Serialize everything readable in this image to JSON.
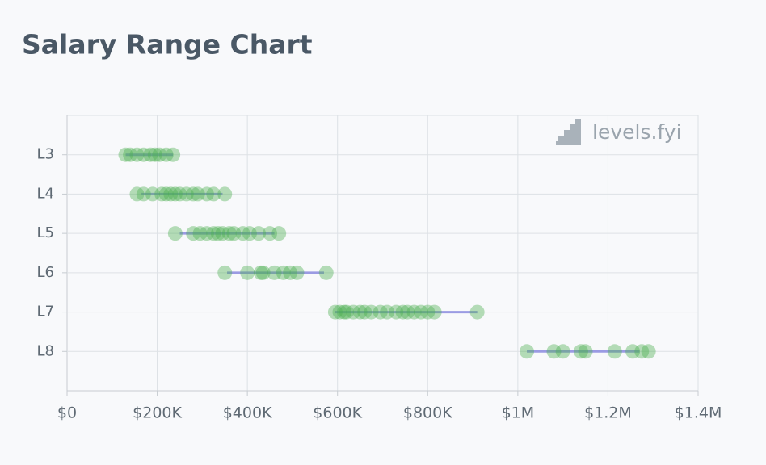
{
  "chart_data": {
    "type": "scatter",
    "title": "Salary Range Chart",
    "watermark": "levels.fyi",
    "categories": [
      "L3",
      "L4",
      "L5",
      "L6",
      "L7",
      "L8"
    ],
    "values": [
      [
        130000,
        140000,
        155000,
        170000,
        185000,
        195000,
        205000,
        220000,
        235000
      ],
      [
        155000,
        170000,
        190000,
        210000,
        220000,
        230000,
        240000,
        250000,
        265000,
        280000,
        290000,
        310000,
        325000,
        350000
      ],
      [
        240000,
        280000,
        295000,
        310000,
        325000,
        335000,
        345000,
        360000,
        370000,
        390000,
        405000,
        425000,
        450000,
        470000
      ],
      [
        350000,
        400000,
        430000,
        435000,
        460000,
        480000,
        495000,
        510000,
        575000
      ],
      [
        595000,
        605000,
        615000,
        620000,
        635000,
        650000,
        660000,
        675000,
        695000,
        710000,
        730000,
        745000,
        755000,
        770000,
        785000,
        800000,
        815000,
        910000
      ],
      [
        1020000,
        1080000,
        1100000,
        1140000,
        1150000,
        1215000,
        1255000,
        1275000,
        1290000
      ]
    ],
    "ranges": [
      [
        130000,
        235000
      ],
      [
        165000,
        345000
      ],
      [
        250000,
        460000
      ],
      [
        355000,
        570000
      ],
      [
        595000,
        910000
      ],
      [
        1020000,
        1270000
      ]
    ],
    "color": "#4caf50",
    "range_color": "#9b9be3",
    "xlim": [
      0,
      1400000
    ],
    "xticks": [
      {
        "value": 0,
        "label": "$0"
      },
      {
        "value": 200000,
        "label": "$200K"
      },
      {
        "value": 400000,
        "label": "$400K"
      },
      {
        "value": 600000,
        "label": "$600K"
      },
      {
        "value": 800000,
        "label": "$800K"
      },
      {
        "value": 1000000,
        "label": "$1M"
      },
      {
        "value": 1200000,
        "label": "$1.2M"
      },
      {
        "value": 1400000,
        "label": "$1.4M"
      }
    ],
    "grid": true
  }
}
